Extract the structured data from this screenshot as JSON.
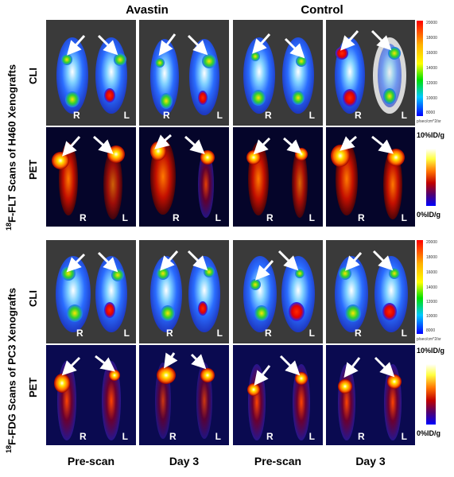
{
  "header": {
    "group_left": "Avastin",
    "group_right": "Control"
  },
  "side_labels": {
    "top": "F-FLT Scans of H460 Xenografts",
    "top_sup": "18",
    "bottom": "F-FDG Scans of PC3 Xenografts",
    "bottom_sup": "18"
  },
  "row_labels": {
    "cli": "CLI",
    "pet": "PET"
  },
  "footer": [
    "Pre-scan",
    "Day 3",
    "Pre-scan",
    "Day 3"
  ],
  "panel_labels": {
    "right": "R",
    "left": "L"
  },
  "pet_scale": {
    "max": "10%ID/g",
    "min": "0%ID/g"
  },
  "cli_scale": {
    "ticks": [
      "20000",
      "18000",
      "16000",
      "14000",
      "12000",
      "10000",
      "8000"
    ],
    "unit": "p/sec/cm^2/sr"
  }
}
